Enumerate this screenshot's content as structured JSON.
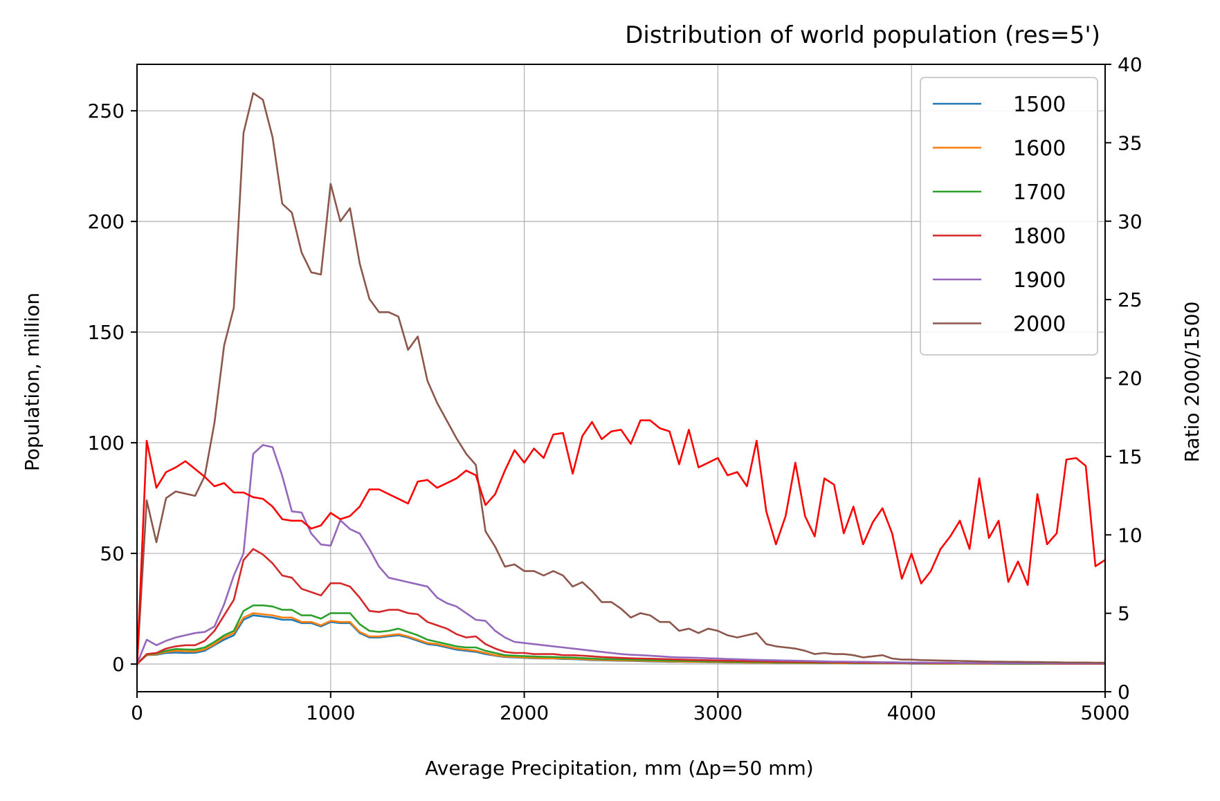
{
  "chart_data": {
    "type": "line",
    "title": "Distribution of world population (res=5')",
    "xlabel": "Average Precipitation, mm (Δp=50 mm)",
    "ylabel": "Population, million",
    "ylabel_right": "Ratio 2000/1500",
    "xlim": [
      0,
      5000
    ],
    "ylim": [
      -12.5,
      271
    ],
    "ylim_right": [
      0,
      40
    ],
    "xticks": [
      0,
      1000,
      2000,
      3000,
      4000,
      5000
    ],
    "yticks": [
      0,
      50,
      100,
      150,
      200,
      250
    ],
    "yticks_right": [
      0,
      5,
      10,
      15,
      20,
      25,
      30,
      35,
      40
    ],
    "grid": true,
    "legend_position": "upper right",
    "x": [
      0,
      50,
      100,
      150,
      200,
      250,
      300,
      350,
      400,
      450,
      500,
      550,
      600,
      650,
      700,
      750,
      800,
      850,
      900,
      950,
      1000,
      1050,
      1100,
      1150,
      1200,
      1250,
      1300,
      1350,
      1400,
      1450,
      1500,
      1550,
      1600,
      1650,
      1700,
      1750,
      1800,
      1850,
      1900,
      1950,
      2000,
      2050,
      2100,
      2150,
      2200,
      2250,
      2300,
      2350,
      2400,
      2450,
      2500,
      2550,
      2600,
      2650,
      2700,
      2750,
      2800,
      2850,
      2900,
      2950,
      3000,
      3050,
      3100,
      3150,
      3200,
      3250,
      3300,
      3350,
      3400,
      3450,
      3500,
      3550,
      3600,
      3650,
      3700,
      3750,
      3800,
      3850,
      3900,
      3950,
      4000,
      4050,
      4100,
      4150,
      4200,
      4250,
      4300,
      4350,
      4400,
      4450,
      4500,
      4550,
      4600,
      4650,
      4700,
      4750,
      4800,
      4850,
      4900,
      4950,
      5000
    ],
    "series": [
      {
        "name": "1500",
        "axis": "left",
        "color": "#1f77b4",
        "values": [
          0,
          4,
          4.2,
          5,
          5.2,
          5,
          5.1,
          6,
          8.5,
          11,
          13,
          20,
          22,
          21.5,
          21,
          20,
          20,
          18.5,
          18.5,
          17,
          19,
          18.5,
          18.5,
          14,
          12,
          12,
          12.5,
          13,
          12,
          10.5,
          9,
          8.5,
          7.5,
          6.5,
          6,
          5.5,
          4.5,
          3.8,
          3.2,
          3,
          2.8,
          2.6,
          2.5,
          2.5,
          2.3,
          2.2,
          2,
          1.8,
          1.7,
          1.6,
          1.5,
          1.4,
          1.3,
          1.2,
          1.1,
          1,
          1,
          0.9,
          0.9,
          0.8,
          0.8,
          0.7,
          0.7,
          0.6,
          0.6,
          0.6,
          0.5,
          0.5,
          0.5,
          0.5,
          0.4,
          0.4,
          0.4,
          0.4,
          0.3,
          0.3,
          0.3,
          0.3,
          0.3,
          0.3,
          0.2,
          0.2,
          0.2,
          0.2,
          0.2,
          0.2,
          0.2,
          0.2,
          0.2,
          0.2,
          0.1,
          0.1,
          0.1,
          0.1,
          0.1,
          0.1,
          0.1,
          0.1,
          0.1,
          0.1,
          0.1
        ]
      },
      {
        "name": "1600",
        "axis": "left",
        "color": "#ff7f0e",
        "values": [
          0,
          4.1,
          4.4,
          5.5,
          6,
          5.8,
          5.7,
          6.6,
          9,
          12,
          14,
          21,
          23,
          22.5,
          22,
          21,
          21,
          19,
          19,
          17.5,
          19.5,
          19,
          19,
          14.5,
          12.5,
          12.5,
          13,
          13.5,
          12.5,
          11,
          9.5,
          9,
          8,
          7,
          6.5,
          6,
          5,
          4,
          3.4,
          3.2,
          3,
          2.8,
          2.7,
          2.6,
          2.5,
          2.4,
          2.2,
          2,
          1.9,
          1.8,
          1.7,
          1.6,
          1.5,
          1.4,
          1.3,
          1.2,
          1.1,
          1,
          1,
          0.9,
          0.9,
          0.8,
          0.8,
          0.7,
          0.7,
          0.6,
          0.6,
          0.6,
          0.5,
          0.5,
          0.5,
          0.5,
          0.4,
          0.4,
          0.4,
          0.4,
          0.3,
          0.3,
          0.3,
          0.3,
          0.3,
          0.3,
          0.2,
          0.2,
          0.2,
          0.2,
          0.2,
          0.2,
          0.2,
          0.2,
          0.2,
          0.2,
          0.2,
          0.2,
          0.1,
          0.1,
          0.1,
          0.1,
          0.1,
          0.1,
          0.1
        ]
      },
      {
        "name": "1700",
        "axis": "left",
        "color": "#2ca02c",
        "values": [
          0,
          4.3,
          4.8,
          6,
          6.8,
          6.6,
          6.5,
          7.5,
          10,
          13,
          15,
          24,
          26.5,
          26.5,
          26,
          24.5,
          24.5,
          22,
          22,
          20.5,
          23,
          23,
          23,
          18,
          15,
          14.5,
          15,
          16,
          14.5,
          13,
          11,
          10,
          9,
          8,
          7.5,
          7.5,
          6,
          5,
          4,
          3.8,
          3.6,
          3.4,
          3.3,
          3.2,
          3,
          2.9,
          2.7,
          2.5,
          2.3,
          2.2,
          2.1,
          2,
          1.9,
          1.8,
          1.7,
          1.6,
          1.5,
          1.4,
          1.3,
          1.2,
          1.2,
          1.1,
          1,
          1,
          0.9,
          0.9,
          0.8,
          0.8,
          0.7,
          0.7,
          0.7,
          0.6,
          0.6,
          0.6,
          0.5,
          0.5,
          0.5,
          0.5,
          0.4,
          0.4,
          0.4,
          0.4,
          0.3,
          0.3,
          0.3,
          0.3,
          0.3,
          0.3,
          0.3,
          0.2,
          0.2,
          0.2,
          0.2,
          0.2,
          0.2,
          0.2,
          0.2,
          0.2,
          0.2,
          0.2,
          0.2
        ]
      },
      {
        "name": "1800",
        "axis": "left",
        "color": "#d62728",
        "values": [
          0,
          4.5,
          5,
          7,
          8,
          8.5,
          8.5,
          10.5,
          15,
          22,
          29,
          47,
          52,
          49.5,
          45.5,
          40,
          39,
          34,
          32.5,
          31,
          36.5,
          36.5,
          35,
          30,
          24,
          23.5,
          24.5,
          24.5,
          23,
          22.5,
          19,
          17.5,
          16,
          13.5,
          12,
          12.5,
          9,
          7,
          5.5,
          5,
          5,
          4.5,
          4.5,
          4.5,
          4,
          4,
          3.8,
          3.5,
          3.2,
          3,
          2.8,
          2.6,
          2.5,
          2.4,
          2.3,
          2.2,
          2,
          1.9,
          1.8,
          1.7,
          1.6,
          1.5,
          1.4,
          1.3,
          1.3,
          1.2,
          1.1,
          1,
          1,
          0.9,
          0.9,
          0.8,
          0.8,
          0.7,
          0.7,
          0.6,
          0.6,
          0.6,
          0.5,
          0.5,
          0.5,
          0.5,
          0.4,
          0.4,
          0.4,
          0.4,
          0.4,
          0.3,
          0.3,
          0.3,
          0.3,
          0.3,
          0.3,
          0.3,
          0.3,
          0.2,
          0.2,
          0.2,
          0.2,
          0.2,
          0.2
        ]
      },
      {
        "name": "1900",
        "axis": "left",
        "color": "#9467bd",
        "values": [
          0,
          11,
          8.5,
          10.5,
          12,
          13,
          14,
          14.5,
          17,
          27,
          40,
          50,
          95,
          99,
          98,
          85,
          69,
          68.5,
          59,
          54,
          53.5,
          65,
          61,
          59,
          52,
          44,
          39,
          38,
          37,
          36,
          35,
          30,
          27.5,
          26,
          23,
          20,
          19.5,
          15,
          12,
          10,
          9.5,
          9,
          8.5,
          8,
          7.5,
          7,
          6.5,
          6,
          5.5,
          5,
          4.5,
          4.2,
          4,
          3.8,
          3.5,
          3.2,
          3,
          2.9,
          2.8,
          2.6,
          2.5,
          2.3,
          2.2,
          2,
          1.9,
          1.8,
          1.7,
          1.6,
          1.5,
          1.4,
          1.3,
          1.2,
          1.1,
          1.1,
          1,
          1,
          0.9,
          0.8,
          0.8,
          0.7,
          0.7,
          0.7,
          0.6,
          0.6,
          0.6,
          0.5,
          0.5,
          0.5,
          0.5,
          0.4,
          0.4,
          0.4,
          0.4,
          0.4,
          0.3,
          0.3,
          0.3,
          0.3,
          0.3,
          0.3,
          0.3
        ]
      },
      {
        "name": "2000",
        "axis": "left",
        "color": "#8c564b",
        "values": [
          0,
          74,
          55,
          75,
          78,
          77,
          76,
          85,
          109,
          144,
          161,
          240,
          258,
          255,
          238,
          208,
          204,
          186,
          177,
          176,
          217,
          200,
          206,
          181,
          165,
          159,
          159,
          157,
          142,
          148,
          128,
          118,
          110,
          102,
          95,
          90,
          60,
          53,
          44,
          45,
          42,
          42,
          40,
          42,
          40,
          35,
          37,
          33,
          28,
          28,
          25,
          21,
          23,
          22,
          19,
          19,
          15,
          16,
          14,
          16,
          15,
          13,
          12,
          13,
          14,
          9,
          8,
          7.5,
          7,
          6,
          4.5,
          5,
          4.5,
          4.5,
          4,
          3,
          3.5,
          4,
          2.5,
          2,
          2,
          1.8,
          1.7,
          1.6,
          1.5,
          1.4,
          1.3,
          1.2,
          1.1,
          1.1,
          1,
          1,
          0.9,
          0.9,
          0.8,
          0.8,
          0.7,
          0.7,
          0.7,
          0.6,
          0.6
        ]
      },
      {
        "name": "",
        "axis": "right",
        "color": "#ff0000",
        "values": [
          1.6,
          16,
          13,
          14,
          14.3,
          14.7,
          14.2,
          13.7,
          13.1,
          13.3,
          12.7,
          12.7,
          12.4,
          12.3,
          11.8,
          11,
          10.9,
          10.9,
          10.4,
          10.6,
          11.4,
          11,
          11.2,
          11.8,
          12.9,
          12.9,
          12.6,
          12.3,
          12,
          13.4,
          13.5,
          13,
          13.3,
          13.6,
          14.1,
          13.8,
          11.9,
          12.6,
          14.1,
          15.4,
          14.6,
          15.5,
          14.9,
          16.4,
          16.5,
          13.9,
          16.3,
          17.2,
          16.1,
          16.6,
          16.7,
          15.8,
          17.3,
          17.3,
          16.8,
          16.6,
          14.5,
          16.7,
          14.3,
          14.6,
          14.9,
          13.8,
          14,
          13.1,
          16,
          11.5,
          9.4,
          11.2,
          14.6,
          11.2,
          9.9,
          13.6,
          13.2,
          10.1,
          11.8,
          9.4,
          10.8,
          11.7,
          10.1,
          7.2,
          8.8,
          6.9,
          7.7,
          9.1,
          9.9,
          10.9,
          9.1,
          13.6,
          9.8,
          10.9,
          7,
          8.3,
          6.8,
          12.6,
          9.4,
          10.1,
          14.8,
          14.9,
          14.4,
          8,
          8.4
        ]
      }
    ]
  }
}
